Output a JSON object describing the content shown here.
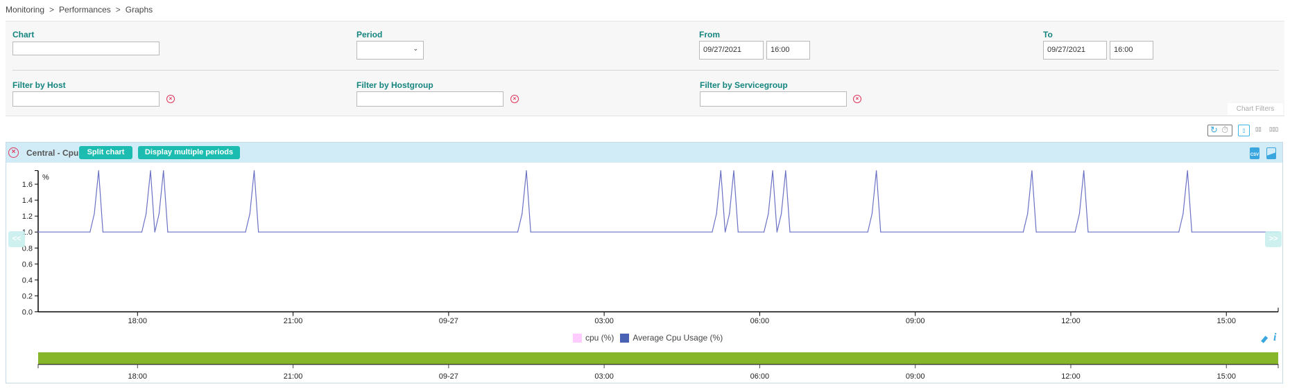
{
  "breadcrumb": [
    "Monitoring",
    "Performances",
    "Graphs"
  ],
  "breadcrumb_separator": ">",
  "filters": {
    "chart": {
      "label": "Chart",
      "value": ""
    },
    "period": {
      "label": "Period",
      "value": ""
    },
    "from": {
      "label": "From",
      "date": "09/27/2021",
      "time": "16:00"
    },
    "to": {
      "label": "To",
      "date": "09/27/2021",
      "time": "16:00"
    },
    "host": {
      "label": "Filter by Host",
      "value": ""
    },
    "hostgroup": {
      "label": "Filter by Hostgroup",
      "value": ""
    },
    "servicegroup": {
      "label": "Filter by Servicegroup",
      "value": ""
    },
    "tab_label": "Chart Filters"
  },
  "toolbar": {
    "icons": [
      "refresh-icon",
      "timer-icon",
      "layout-1-column-icon",
      "layout-2-columns-icon",
      "layout-3-columns-icon"
    ],
    "active_layout": "1-column"
  },
  "chart_panel": {
    "title": "Central - Cpu",
    "split_label": "Split chart",
    "multi_period_label": "Display multiple periods",
    "prev_label": "<<",
    "next_label": ">>",
    "export_icons": [
      "csv-export-icon",
      "image-export-icon"
    ],
    "legend_tools": [
      "eraser-icon",
      "info-icon"
    ],
    "header_color": "#d2ecf7",
    "button_color": "#1cbdb0",
    "navigator_color": "#88b62a"
  },
  "chart_data": {
    "type": "line",
    "title": "",
    "xlabel": "",
    "ylabel": "",
    "y_unit_marker": "%",
    "xlim": [
      "2021-09-26 16:05",
      "2021-09-27 16:00"
    ],
    "ylim": [
      0,
      1.77
    ],
    "y_ticks": [
      "0.0",
      "0.2",
      "0.4",
      "0.6",
      "0.8",
      "1.0",
      "1.2",
      "1.4",
      "1.6"
    ],
    "x_ticks": [
      {
        "t": "2021-09-26 18:00",
        "label": "18:00"
      },
      {
        "t": "2021-09-26 21:00",
        "label": "21:00"
      },
      {
        "t": "2021-09-27 00:00",
        "label": "09-27"
      },
      {
        "t": "2021-09-27 03:00",
        "label": "03:00"
      },
      {
        "t": "2021-09-27 06:00",
        "label": "06:00"
      },
      {
        "t": "2021-09-27 09:00",
        "label": "09:00"
      },
      {
        "t": "2021-09-27 12:00",
        "label": "12:00"
      },
      {
        "t": "2021-09-27 15:00",
        "label": "15:00"
      }
    ],
    "grid": false,
    "legend_position": "bottom",
    "series": [
      {
        "name": "cpu (%)",
        "color": "#ffccff",
        "points": []
      },
      {
        "name": "Average Cpu Usage (%)",
        "color": "#4a62b3",
        "line_color": "#6a70c4",
        "points": [
          [
            "2021-09-26 16:05",
            1.0
          ],
          [
            "2021-09-26 17:05",
            1.0
          ],
          [
            "2021-09-26 17:10",
            1.23
          ],
          [
            "2021-09-26 17:15",
            1.77
          ],
          [
            "2021-09-26 17:20",
            1.0
          ],
          [
            "2021-09-26 18:05",
            1.0
          ],
          [
            "2021-09-26 18:10",
            1.23
          ],
          [
            "2021-09-26 18:15",
            1.77
          ],
          [
            "2021-09-26 18:20",
            1.0
          ],
          [
            "2021-09-26 18:25",
            1.23
          ],
          [
            "2021-09-26 18:30",
            1.77
          ],
          [
            "2021-09-26 18:35",
            1.0
          ],
          [
            "2021-09-26 20:05",
            1.0
          ],
          [
            "2021-09-26 20:10",
            1.23
          ],
          [
            "2021-09-26 20:15",
            1.77
          ],
          [
            "2021-09-26 20:20",
            1.0
          ],
          [
            "2021-09-27 01:20",
            1.0
          ],
          [
            "2021-09-27 01:25",
            1.23
          ],
          [
            "2021-09-27 01:30",
            1.77
          ],
          [
            "2021-09-27 01:35",
            1.0
          ],
          [
            "2021-09-27 05:05",
            1.0
          ],
          [
            "2021-09-27 05:10",
            1.23
          ],
          [
            "2021-09-27 05:15",
            1.77
          ],
          [
            "2021-09-27 05:20",
            1.0
          ],
          [
            "2021-09-27 05:25",
            1.23
          ],
          [
            "2021-09-27 05:30",
            1.77
          ],
          [
            "2021-09-27 05:35",
            1.0
          ],
          [
            "2021-09-27 06:05",
            1.0
          ],
          [
            "2021-09-27 06:10",
            1.23
          ],
          [
            "2021-09-27 06:15",
            1.77
          ],
          [
            "2021-09-27 06:20",
            1.0
          ],
          [
            "2021-09-27 06:25",
            1.23
          ],
          [
            "2021-09-27 06:30",
            1.77
          ],
          [
            "2021-09-27 06:35",
            1.0
          ],
          [
            "2021-09-27 08:05",
            1.0
          ],
          [
            "2021-09-27 08:10",
            1.23
          ],
          [
            "2021-09-27 08:15",
            1.77
          ],
          [
            "2021-09-27 08:20",
            1.0
          ],
          [
            "2021-09-27 11:05",
            1.0
          ],
          [
            "2021-09-27 11:10",
            1.23
          ],
          [
            "2021-09-27 11:15",
            1.77
          ],
          [
            "2021-09-27 11:20",
            1.0
          ],
          [
            "2021-09-27 12:05",
            1.0
          ],
          [
            "2021-09-27 12:10",
            1.23
          ],
          [
            "2021-09-27 12:15",
            1.77
          ],
          [
            "2021-09-27 12:20",
            1.0
          ],
          [
            "2021-09-27 14:05",
            1.0
          ],
          [
            "2021-09-27 14:10",
            1.23
          ],
          [
            "2021-09-27 14:15",
            1.77
          ],
          [
            "2021-09-27 14:20",
            1.0
          ],
          [
            "2021-09-27 16:00",
            1.0
          ]
        ]
      }
    ]
  }
}
